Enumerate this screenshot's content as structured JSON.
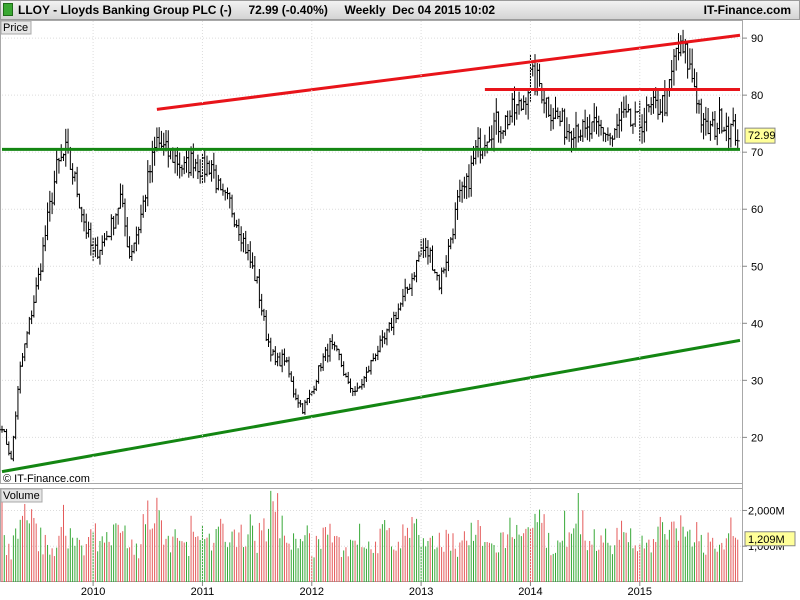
{
  "header": {
    "title": "LLOY - Lloyds Banking Group PLC (-)     72.99 (-0.40%)     Weekly  Dec 04 2015 10:02",
    "site": "IT-Finance.com"
  },
  "chart_data": [
    {
      "type": "ohlc",
      "panel_label": "Price",
      "watermark": "© IT-Finance.com",
      "last_value": "72.99",
      "x_ticks": [
        "2010",
        "2011",
        "2012",
        "2013",
        "2014",
        "2015"
      ],
      "x_range": [
        "2009-03",
        "2015-12"
      ],
      "y_ticks": [
        90,
        80,
        70,
        60,
        50,
        40,
        30,
        20
      ],
      "y_range": [
        12,
        93
      ],
      "grid": true,
      "series": [
        {
          "values": [
            [
              "2009-03",
              22
            ],
            [
              "2009-04",
              16
            ],
            [
              "2009-05",
              32
            ],
            [
              "2009-06",
              40
            ],
            [
              "2009-07",
              48
            ],
            [
              "2009-08",
              58
            ],
            [
              "2009-09",
              67
            ],
            [
              "2009-10",
              70
            ],
            [
              "2009-11",
              65
            ],
            [
              "2009-12",
              58
            ],
            [
              "2010-01",
              52
            ],
            [
              "2010-02",
              54
            ],
            [
              "2010-03",
              57
            ],
            [
              "2010-04",
              62
            ],
            [
              "2010-05",
              52
            ],
            [
              "2010-06",
              57
            ],
            [
              "2010-07",
              65
            ],
            [
              "2010-08",
              72
            ],
            [
              "2010-09",
              70
            ],
            [
              "2010-10",
              69
            ],
            [
              "2010-11",
              67
            ],
            [
              "2010-12",
              69
            ],
            [
              "2011-01",
              67
            ],
            [
              "2011-02",
              68
            ],
            [
              "2011-03",
              62
            ],
            [
              "2011-04",
              61
            ],
            [
              "2011-05",
              57
            ],
            [
              "2011-06",
              52
            ],
            [
              "2011-07",
              47
            ],
            [
              "2011-08",
              38
            ],
            [
              "2011-09",
              33
            ],
            [
              "2011-10",
              34
            ],
            [
              "2011-11",
              28
            ],
            [
              "2011-12",
              25
            ],
            [
              "2012-01",
              28
            ],
            [
              "2012-02",
              33
            ],
            [
              "2012-03",
              36
            ],
            [
              "2012-04",
              34
            ],
            [
              "2012-05",
              29
            ],
            [
              "2012-06",
              28
            ],
            [
              "2012-07",
              31
            ],
            [
              "2012-08",
              35
            ],
            [
              "2012-09",
              37
            ],
            [
              "2012-10",
              41
            ],
            [
              "2012-11",
              44
            ],
            [
              "2012-12",
              48
            ],
            [
              "2013-01",
              53
            ],
            [
              "2013-02",
              52
            ],
            [
              "2013-03",
              47
            ],
            [
              "2013-04",
              53
            ],
            [
              "2013-05",
              61
            ],
            [
              "2013-06",
              64
            ],
            [
              "2013-07",
              70
            ],
            [
              "2013-08",
              73
            ],
            [
              "2013-09",
              75
            ],
            [
              "2013-10",
              75
            ],
            [
              "2013-11",
              77
            ],
            [
              "2013-12",
              78
            ],
            [
              "2014-01",
              83
            ],
            [
              "2014-02",
              82
            ],
            [
              "2014-03",
              78
            ],
            [
              "2014-04",
              76
            ],
            [
              "2014-05",
              74
            ],
            [
              "2014-06",
              75
            ],
            [
              "2014-07",
              73
            ],
            [
              "2014-08",
              74
            ],
            [
              "2014-09",
              74
            ],
            [
              "2014-10",
              72
            ],
            [
              "2014-11",
              76
            ],
            [
              "2014-12",
              75
            ],
            [
              "2015-01",
              75
            ],
            [
              "2015-02",
              77
            ],
            [
              "2015-03",
              78
            ],
            [
              "2015-04",
              79
            ],
            [
              "2015-05",
              88
            ],
            [
              "2015-06",
              87
            ],
            [
              "2015-07",
              82
            ],
            [
              "2015-08",
              74
            ],
            [
              "2015-09",
              74
            ],
            [
              "2015-10",
              76
            ],
            [
              "2015-11",
              74
            ],
            [
              "2015-12",
              73
            ]
          ]
        }
      ],
      "trend_lines": [
        {
          "color": "#e8141a",
          "points": [
            [
              "2010-08",
              77.5
            ],
            [
              "2015-12",
              90.5
            ]
          ]
        },
        {
          "color": "#e8141a",
          "points": [
            [
              "2013-08",
              81
            ],
            [
              "2015-12",
              81
            ]
          ]
        },
        {
          "color": "#138612",
          "points": [
            [
              "2009-03",
              70.5
            ],
            [
              "2015-12",
              70.5
            ]
          ]
        },
        {
          "color": "#138612",
          "points": [
            [
              "2009-03",
              14
            ],
            [
              "2015-12",
              37
            ]
          ]
        }
      ]
    },
    {
      "type": "bar",
      "panel_label": "Volume",
      "y_ticks": [
        "2,000M",
        "1,000M"
      ],
      "y_tick_values": [
        2000,
        1000
      ],
      "last_value": "1,209M",
      "y_range": [
        0,
        2600
      ],
      "values_m": [
        1200,
        900,
        1600,
        2100,
        1300,
        1000,
        1100,
        1500,
        1200,
        1000,
        1400,
        1100,
        1300,
        1600,
        1200,
        900,
        1500,
        1900,
        1100,
        1300,
        1000,
        1200,
        1400,
        1000,
        1500,
        1100,
        1300,
        1600,
        1200,
        1700,
        2300,
        1400,
        1100,
        1600,
        1000,
        1200,
        1300,
        1100,
        900,
        1400,
        1200,
        1000,
        1500,
        1100,
        1300,
        1600,
        1100,
        1000,
        1200,
        1400,
        1000,
        1300,
        1500,
        1100,
        1000,
        1200,
        1700,
        1100,
        1300,
        1900,
        1200,
        1000,
        1100,
        1400,
        1000,
        1200,
        1300,
        1100,
        1500,
        1000,
        1200,
        1100,
        1600,
        1300,
        1800,
        1200,
        1500,
        1100,
        1300,
        1000,
        1200,
        1209
      ]
    }
  ]
}
